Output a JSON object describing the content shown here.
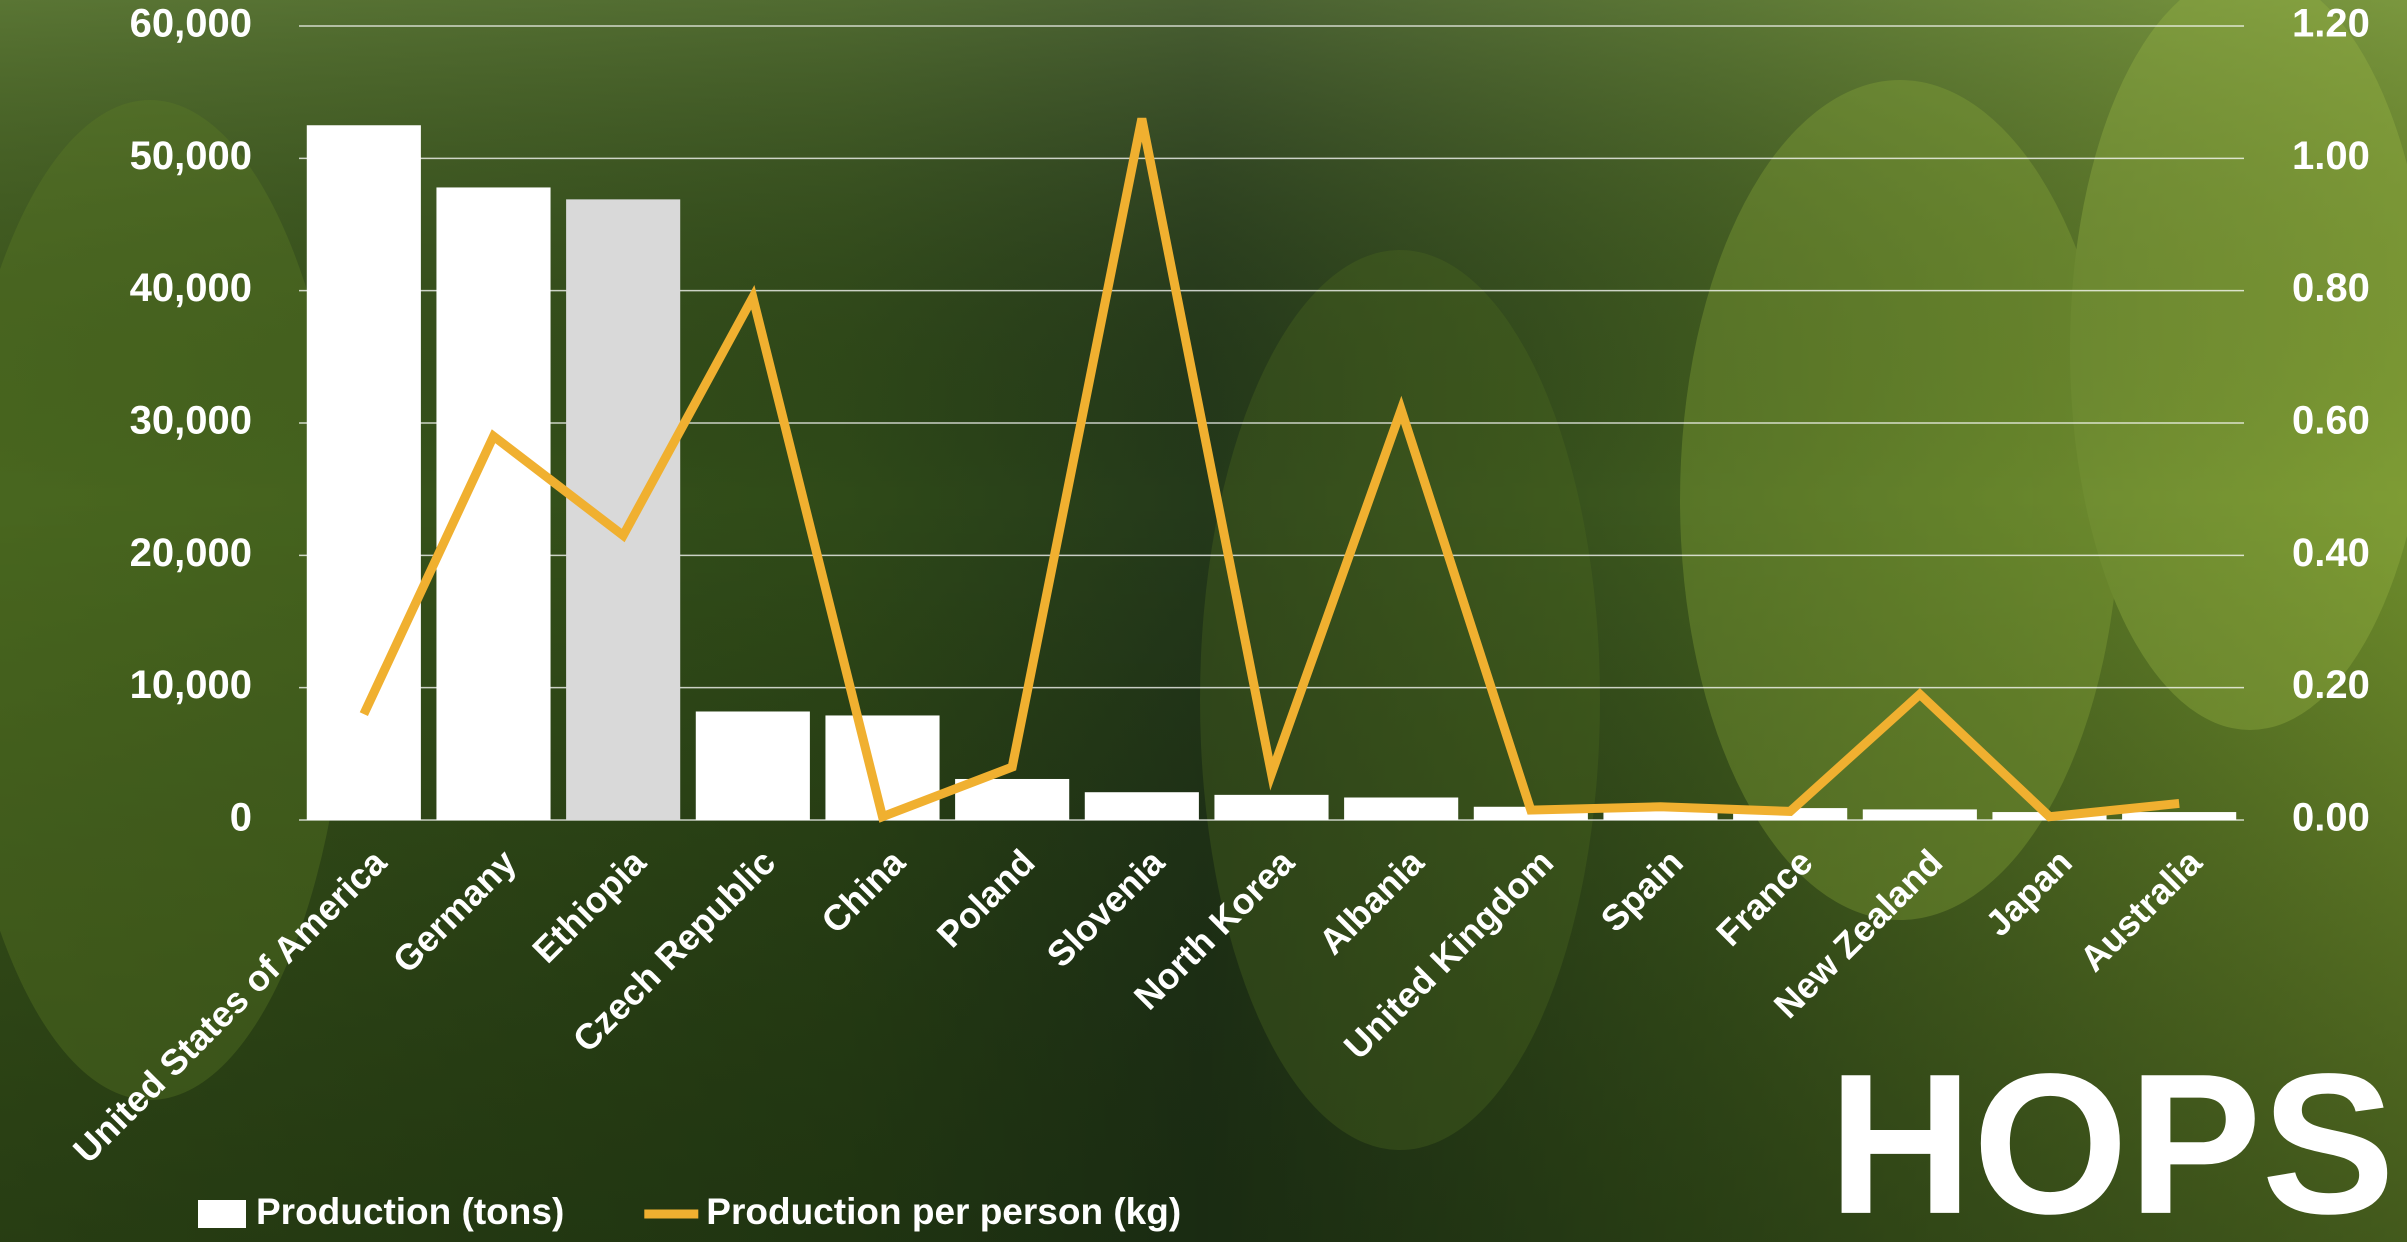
{
  "chart_data": {
    "type": "bar-line",
    "categories": [
      "United States of America",
      "Germany",
      "Ethiopia",
      "Czech Republic",
      "China",
      "Poland",
      "Slovenia",
      "North Korea",
      "Albania",
      "United Kingdom",
      "Spain",
      "France",
      "New Zealand",
      "Japan",
      "Australia"
    ],
    "series": [
      {
        "name": "Production (tons)",
        "type": "bar",
        "color": "#ffffff",
        "colors": [
          "#ffffff",
          "#ffffff",
          "#d9d9d9",
          "#ffffff",
          "#ffffff",
          "#ffffff",
          "#ffffff",
          "#ffffff",
          "#ffffff",
          "#ffffff",
          "#ffffff",
          "#ffffff",
          "#ffffff",
          "#ffffff",
          "#ffffff"
        ],
        "values": [
          52500,
          47800,
          46900,
          8200,
          7900,
          3100,
          2100,
          1900,
          1700,
          1000,
          700,
          900,
          800,
          600,
          600
        ]
      },
      {
        "name": "Production per person (kg)",
        "type": "line",
        "axis": "y2",
        "color": "#f0b030",
        "values": [
          0.16,
          0.58,
          0.43,
          0.79,
          0.005,
          0.08,
          1.06,
          0.07,
          0.62,
          0.015,
          0.02,
          0.013,
          0.19,
          0.005,
          0.025
        ]
      }
    ],
    "ylim": [
      0,
      60000
    ],
    "yticks": [
      0,
      {
        "value": 10000,
        "label": "10,000"
      },
      {
        "value": 20000,
        "label": "20,000"
      },
      {
        "value": 30000,
        "label": "30,000"
      },
      {
        "value": 40000,
        "label": "40,000"
      },
      {
        "value": 50000,
        "label": "50,000"
      },
      {
        "value": 60000,
        "label": "60,000"
      }
    ],
    "y2lim": [
      0,
      1.2
    ],
    "y2ticks": [
      {
        "value": 0,
        "label": "0.00"
      },
      {
        "value": 0.2,
        "label": "0.20"
      },
      {
        "value": 0.4,
        "label": "0.40"
      },
      {
        "value": 0.6,
        "label": "0.60"
      },
      {
        "value": 0.8,
        "label": "0.80"
      },
      {
        "value": 1.0,
        "label": "1.00"
      },
      {
        "value": 1.2,
        "label": "1.20"
      }
    ],
    "grid": true,
    "annotation": "HOPS"
  }
}
